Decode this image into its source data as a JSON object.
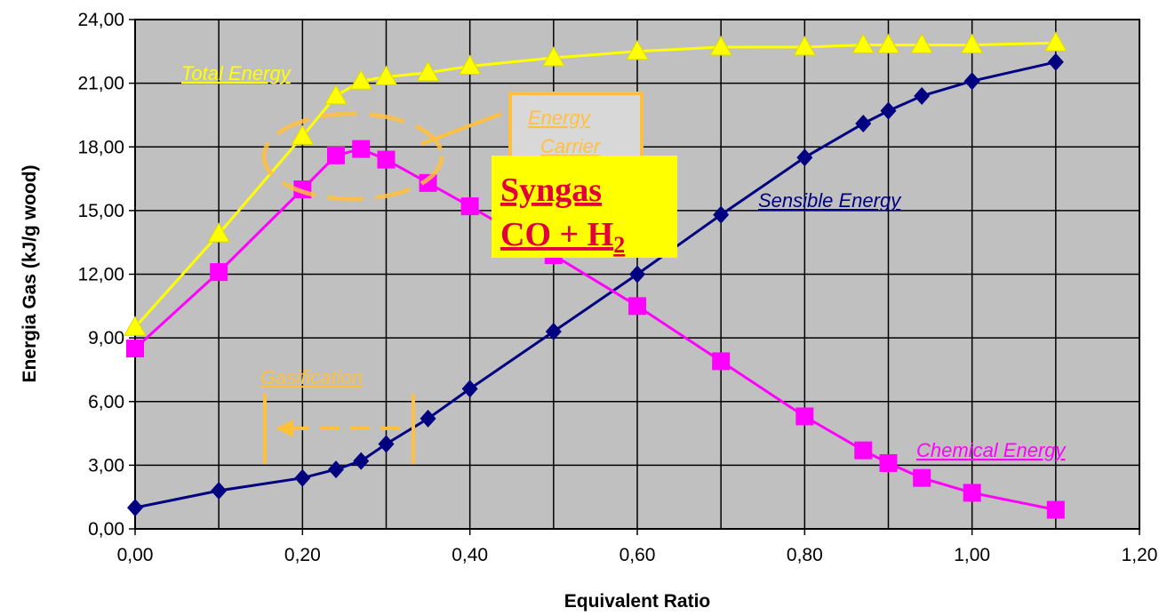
{
  "chart_data": {
    "type": "line",
    "xlabel": "Equivalent Ratio",
    "ylabel": "Energia Gas (kJ/g wood)",
    "xlim": [
      0,
      1.2
    ],
    "ylim": [
      0,
      24
    ],
    "x_ticks": [
      "0,00",
      "0,20",
      "0,40",
      "0,60",
      "0,80",
      "1,00",
      "1,20"
    ],
    "y_ticks": [
      "0,00",
      "3,00",
      "6,00",
      "9,00",
      "12,00",
      "15,00",
      "18,00",
      "21,00",
      "24,00"
    ],
    "grid": true,
    "plot_background": "#c0c0c0",
    "series": [
      {
        "name": "Total Energy",
        "color": "#ffff00",
        "marker": "triangle",
        "x": [
          0.0,
          0.1,
          0.2,
          0.24,
          0.27,
          0.3,
          0.35,
          0.4,
          0.5,
          0.6,
          0.7,
          0.8,
          0.87,
          0.9,
          0.94,
          1.0,
          1.1
        ],
        "y": [
          9.5,
          13.9,
          18.5,
          20.4,
          21.1,
          21.3,
          21.5,
          21.8,
          22.2,
          22.5,
          22.7,
          22.7,
          22.8,
          22.8,
          22.8,
          22.8,
          22.9
        ]
      },
      {
        "name": "Chemical Energy",
        "color": "#ff00ff",
        "marker": "square",
        "x": [
          0.0,
          0.1,
          0.2,
          0.24,
          0.27,
          0.3,
          0.35,
          0.4,
          0.5,
          0.6,
          0.7,
          0.8,
          0.87,
          0.9,
          0.94,
          1.0,
          1.1
        ],
        "y": [
          8.5,
          12.1,
          16.0,
          17.6,
          17.9,
          17.4,
          16.3,
          15.2,
          12.9,
          10.5,
          7.9,
          5.3,
          3.7,
          3.1,
          2.4,
          1.7,
          0.9
        ]
      },
      {
        "name": "Sensible Energy",
        "color": "#000080",
        "marker": "diamond",
        "x": [
          0.0,
          0.1,
          0.2,
          0.24,
          0.27,
          0.3,
          0.35,
          0.4,
          0.5,
          0.6,
          0.7,
          0.8,
          0.87,
          0.9,
          0.94,
          1.0,
          1.1
        ],
        "y": [
          1.0,
          1.8,
          2.4,
          2.8,
          3.2,
          4.0,
          5.2,
          6.6,
          9.3,
          12.0,
          14.8,
          17.5,
          19.1,
          19.7,
          20.4,
          21.1,
          22.0
        ]
      }
    ],
    "annotations": {
      "total_energy": "Total Energy",
      "sensible_energy": "Sensible Energy",
      "chemical_energy": "Chemical Energy",
      "gasification": "Gasification",
      "energy_carrier_line1": "Energy",
      "energy_carrier_line2": "Carrier",
      "syngas_line1": "Syngas",
      "syngas_line2_main": "CO + H",
      "syngas_line2_sub": "2"
    },
    "annotation_colors": {
      "highlight": "#ffc040",
      "syngas_box": "#ffff00",
      "syngas_text": "#e0003c"
    }
  }
}
